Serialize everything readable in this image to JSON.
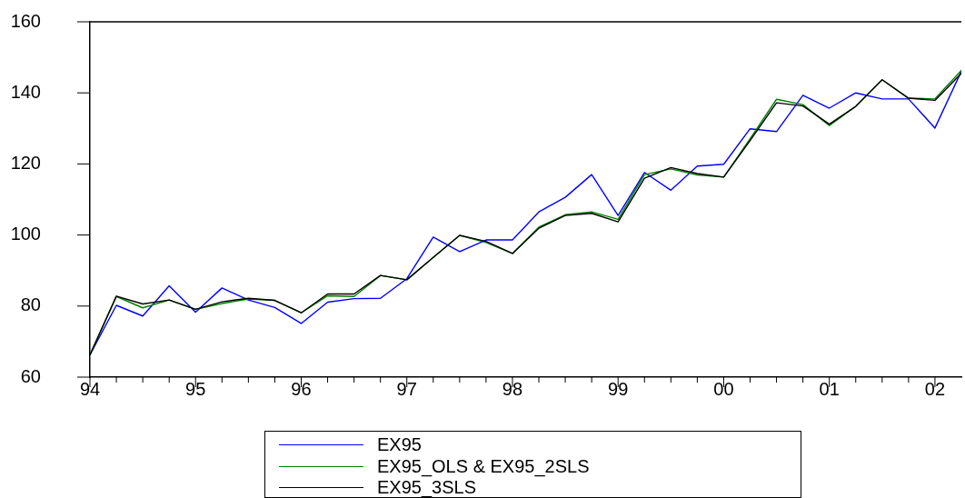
{
  "chart_data": {
    "type": "line",
    "x": [
      1994,
      1994.25,
      1994.5,
      1994.75,
      1995,
      1995.25,
      1995.5,
      1995.75,
      1996,
      1996.25,
      1996.5,
      1996.75,
      1997,
      1997.25,
      1997.5,
      1997.75,
      1998,
      1998.25,
      1998.5,
      1998.75,
      1999,
      1999.25,
      1999.5,
      1999.75,
      2000,
      2000.25,
      2000.5,
      2000.75,
      2001,
      2001.25,
      2001.5,
      2001.75,
      2002,
      2002.25
    ],
    "xlim": [
      1994,
      2002.25
    ],
    "xticks": [
      {
        "value": 1994,
        "label": "94"
      },
      {
        "value": 1994.25,
        "label": null
      },
      {
        "value": 1994.5,
        "label": null
      },
      {
        "value": 1994.75,
        "label": null
      },
      {
        "value": 1995,
        "label": "95"
      },
      {
        "value": 1995.25,
        "label": null
      },
      {
        "value": 1995.5,
        "label": null
      },
      {
        "value": 1995.75,
        "label": null
      },
      {
        "value": 1996,
        "label": "96"
      },
      {
        "value": 1996.25,
        "label": null
      },
      {
        "value": 1996.5,
        "label": null
      },
      {
        "value": 1996.75,
        "label": null
      },
      {
        "value": 1997,
        "label": "97"
      },
      {
        "value": 1997.25,
        "label": null
      },
      {
        "value": 1997.5,
        "label": null
      },
      {
        "value": 1997.75,
        "label": null
      },
      {
        "value": 1998,
        "label": "98"
      },
      {
        "value": 1998.25,
        "label": null
      },
      {
        "value": 1998.5,
        "label": null
      },
      {
        "value": 1998.75,
        "label": null
      },
      {
        "value": 1999,
        "label": "99"
      },
      {
        "value": 1999.25,
        "label": null
      },
      {
        "value": 1999.5,
        "label": null
      },
      {
        "value": 1999.75,
        "label": null
      },
      {
        "value": 2000,
        "label": "00"
      },
      {
        "value": 2000.25,
        "label": null
      },
      {
        "value": 2000.5,
        "label": null
      },
      {
        "value": 2000.75,
        "label": null
      },
      {
        "value": 2001,
        "label": "01"
      },
      {
        "value": 2001.25,
        "label": null
      },
      {
        "value": 2001.5,
        "label": null
      },
      {
        "value": 2001.75,
        "label": null
      },
      {
        "value": 2002,
        "label": "02"
      }
    ],
    "ylim": [
      60,
      160
    ],
    "yticks": [
      60,
      80,
      100,
      120,
      140,
      160
    ],
    "series": [
      {
        "name": "EX95",
        "color": "#0000ff",
        "values": [
          66.3,
          80.2,
          77.2,
          85.7,
          78.3,
          85.1,
          81.7,
          79.6,
          75.1,
          81.1,
          82.1,
          82.2,
          87.7,
          99.4,
          95.3,
          98.6,
          98.6,
          106.5,
          110.6,
          117.0,
          105.5,
          117.6,
          112.6,
          119.4,
          119.9,
          129.9,
          129.1,
          139.3,
          135.7,
          140.0,
          138.3,
          138.3,
          130.1,
          146.1
        ]
      },
      {
        "name": "EX95_OLS & EX95_2SLS",
        "color": "#008000",
        "values": [
          66.3,
          82.7,
          79.5,
          81.7,
          79.1,
          80.7,
          82.0,
          81.6,
          78.1,
          82.9,
          82.7,
          88.6,
          87.4,
          93.7,
          99.9,
          97.9,
          94.8,
          102.2,
          105.7,
          106.5,
          104.4,
          117.0,
          118.6,
          116.9,
          116.3,
          127.1,
          138.2,
          136.7,
          130.8,
          136.2,
          143.7,
          138.5,
          138.3,
          146.3
        ]
      },
      {
        "name": "EX95_3SLS",
        "color": "#000000",
        "values": [
          66.3,
          82.8,
          80.6,
          81.7,
          79.1,
          81.2,
          82.2,
          81.6,
          78.1,
          83.4,
          83.4,
          88.6,
          87.4,
          93.7,
          99.9,
          98.2,
          94.8,
          101.9,
          105.5,
          106.1,
          103.7,
          116.0,
          119.0,
          117.3,
          116.3,
          126.6,
          137.2,
          136.3,
          131.2,
          136.2,
          143.7,
          138.5,
          137.9,
          145.5
        ]
      }
    ],
    "legend": "bottom",
    "grid": false,
    "marker": "none",
    "line_style": "solid"
  }
}
